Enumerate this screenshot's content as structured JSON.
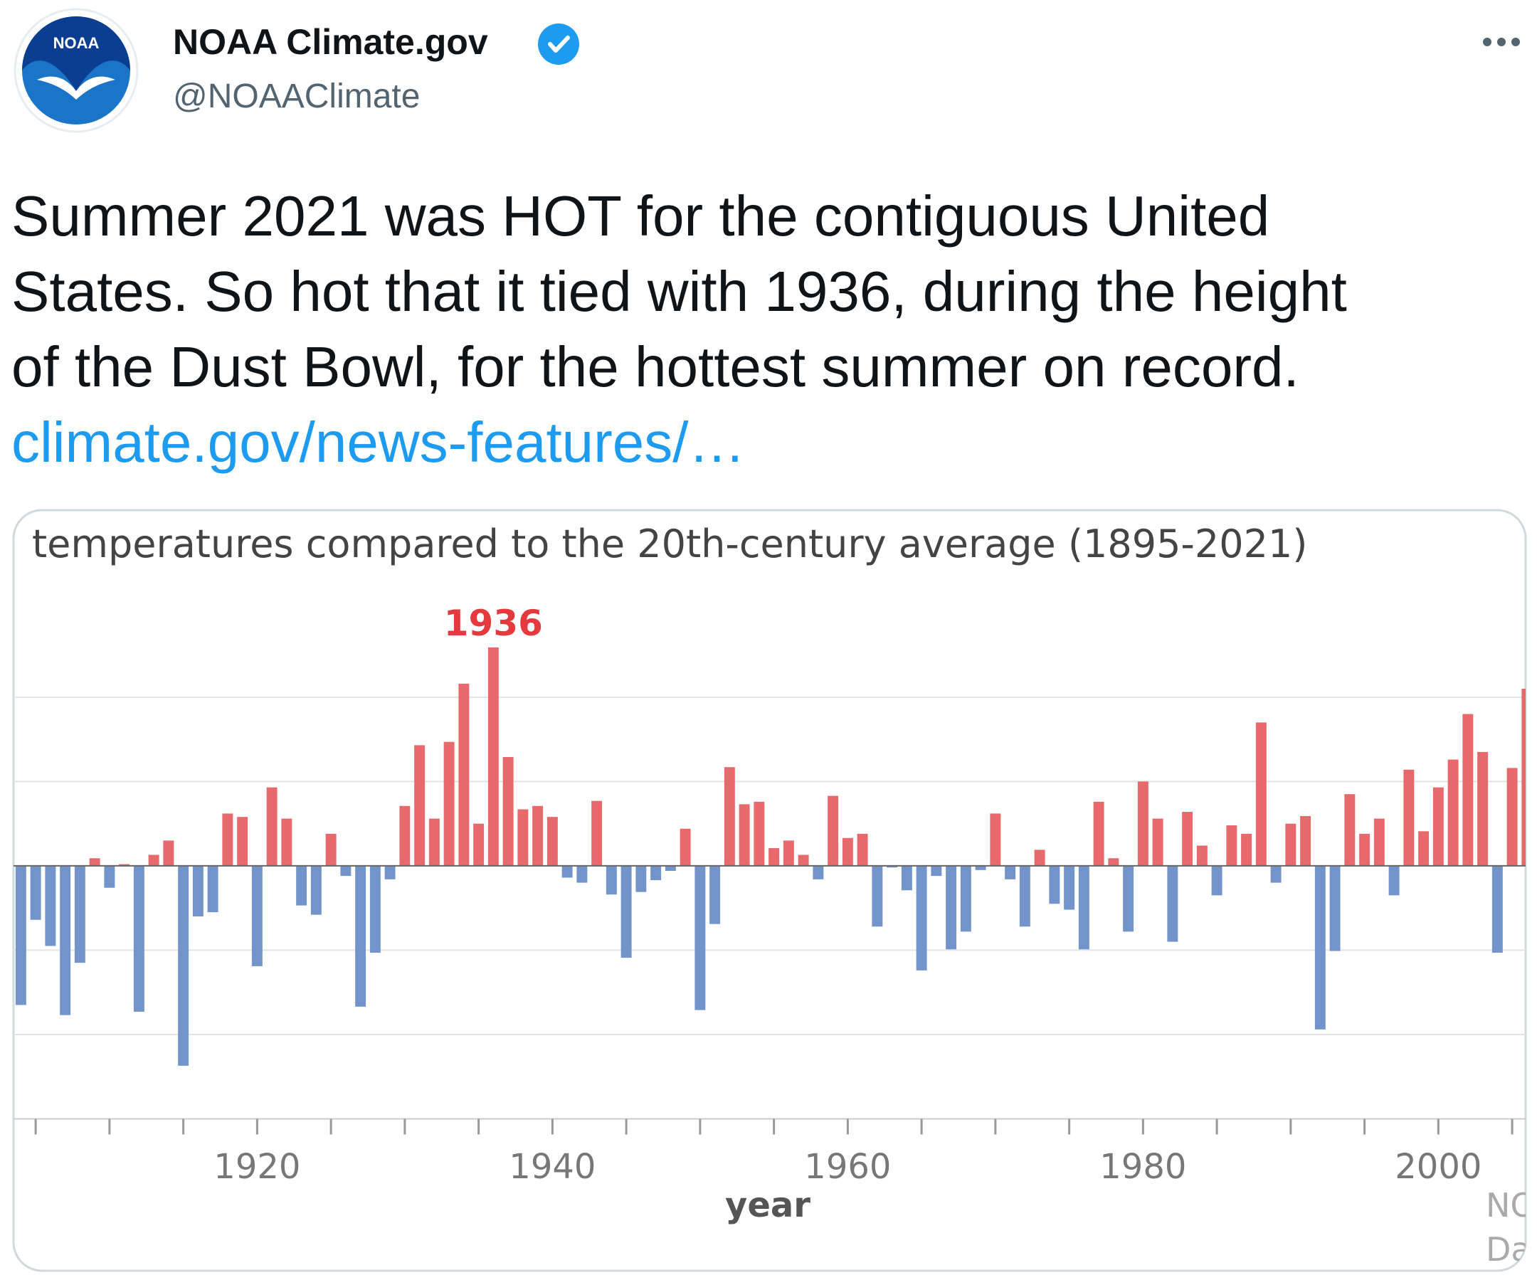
{
  "tweet": {
    "display_name": "NOAA Climate.gov",
    "handle": "@NOAAClimate",
    "avatar_text": "NOAA",
    "text_lines": [
      "Summer 2021 was HOT for the contiguous United",
      "States. So hot that it tied with 1936, during the height",
      "of the Dust Bowl, for the hottest summer on record."
    ],
    "link": "climate.gov/news-features/…"
  },
  "chart_data": {
    "type": "bar",
    "title": "temperatures compared to the 20th-century average (1895-2021)",
    "x_label": "year",
    "annotation": "1936",
    "credit_lines": [
      "NO",
      "Da"
    ],
    "x": [
      1904,
      1905,
      1906,
      1907,
      1908,
      1909,
      1910,
      1911,
      1912,
      1913,
      1914,
      1915,
      1916,
      1917,
      1918,
      1919,
      1920,
      1921,
      1922,
      1923,
      1924,
      1925,
      1926,
      1927,
      1928,
      1929,
      1930,
      1931,
      1932,
      1933,
      1934,
      1935,
      1936,
      1937,
      1938,
      1939,
      1940,
      1941,
      1942,
      1943,
      1944,
      1945,
      1946,
      1947,
      1948,
      1949,
      1950,
      1951,
      1952,
      1953,
      1954,
      1955,
      1956,
      1957,
      1958,
      1959,
      1960,
      1961,
      1962,
      1963,
      1964,
      1965,
      1966,
      1967,
      1968,
      1969,
      1970,
      1971,
      1972,
      1973,
      1974,
      1975,
      1976,
      1977,
      1978,
      1979,
      1980,
      1981,
      1982,
      1983,
      1984,
      1985,
      1986,
      1987,
      1988,
      1989,
      1990,
      1991,
      1992,
      1993,
      1994,
      1995,
      1996,
      1997,
      1998,
      1999,
      2000,
      2001,
      2002,
      2003,
      2004,
      2005,
      2006
    ],
    "values": [
      -1.65,
      -0.64,
      -0.95,
      -1.77,
      -1.15,
      0.09,
      -0.26,
      0.02,
      -1.73,
      0.13,
      0.3,
      -2.37,
      -0.6,
      -0.55,
      0.62,
      0.58,
      -1.19,
      0.93,
      0.56,
      -0.47,
      -0.58,
      0.38,
      -0.12,
      -1.67,
      -1.03,
      -0.16,
      0.71,
      1.43,
      0.56,
      1.47,
      2.16,
      0.5,
      2.59,
      1.29,
      0.67,
      0.71,
      0.58,
      -0.14,
      -0.2,
      0.77,
      -0.34,
      -1.09,
      -0.31,
      -0.17,
      -0.06,
      0.44,
      -1.71,
      -0.69,
      1.17,
      0.73,
      0.76,
      0.21,
      0.3,
      0.13,
      -0.16,
      0.83,
      0.33,
      0.38,
      -0.72,
      -0.02,
      -0.29,
      -1.24,
      -0.12,
      -0.99,
      -0.78,
      -0.05,
      0.62,
      -0.16,
      -0.72,
      0.19,
      -0.45,
      -0.52,
      -0.99,
      0.76,
      0.09,
      -0.78,
      1.0,
      0.56,
      -0.9,
      0.64,
      0.24,
      -0.35,
      0.48,
      0.38,
      1.7,
      -0.2,
      0.5,
      0.59,
      -1.94,
      -1.01,
      0.85,
      0.38,
      0.56,
      -0.35,
      1.14,
      0.41,
      0.93,
      1.26,
      1.8,
      1.35,
      -1.03,
      1.16,
      2.1
    ],
    "positive_color": "#e8696b",
    "negative_color": "#7394cb",
    "xlim": [
      1903.5,
      2006.2
    ],
    "xticks": [
      1920,
      1940,
      1960,
      1980,
      2000
    ],
    "x_minor_ticks": [
      1905,
      1910,
      1915,
      1925,
      1930,
      1935,
      1945,
      1950,
      1955,
      1965,
      1970,
      1975,
      1985,
      1990,
      1995,
      2005
    ],
    "ylim": [
      -3,
      2.8
    ],
    "yticks": [
      -2,
      -1,
      0,
      1,
      2
    ],
    "grid": true
  }
}
